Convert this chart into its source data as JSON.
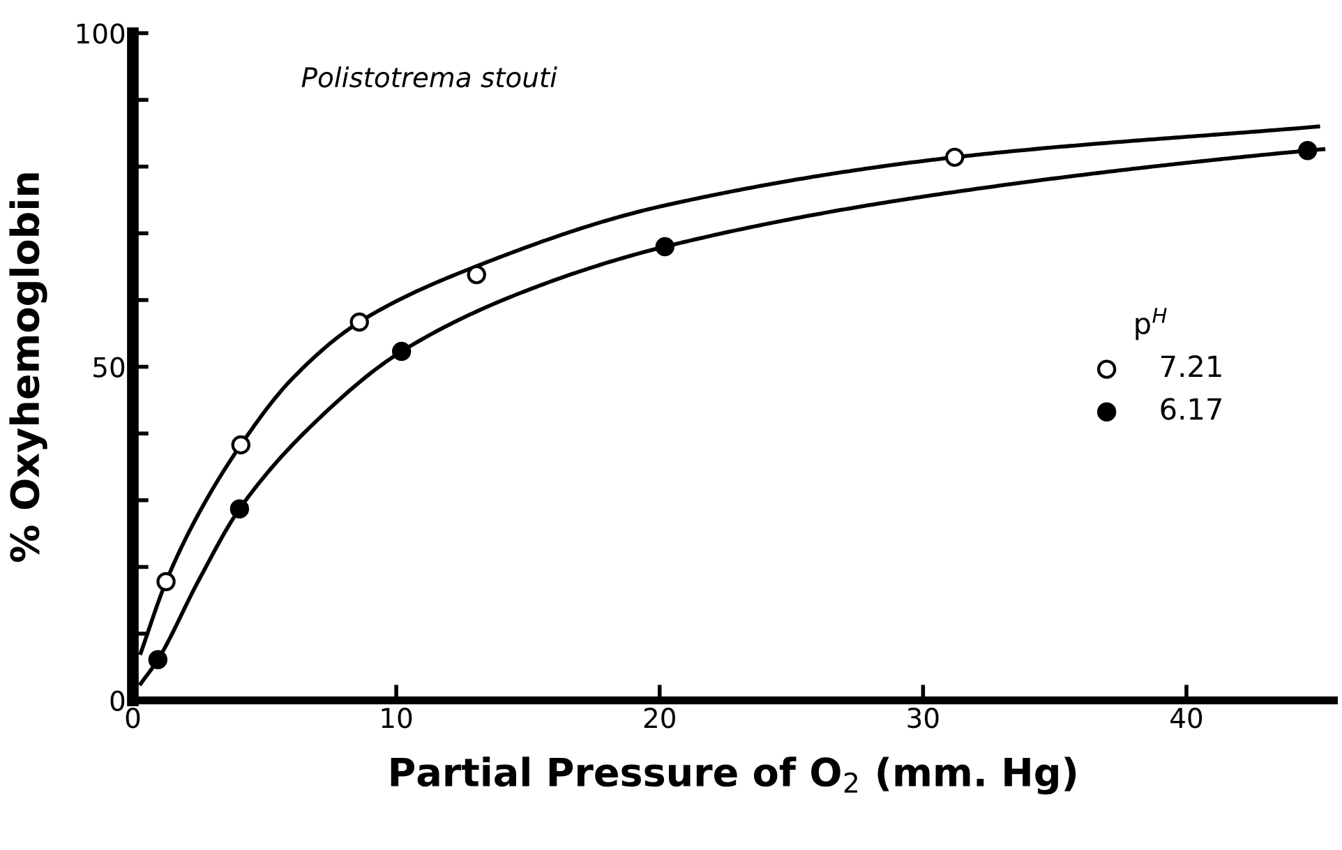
{
  "chart_data": {
    "type": "scatter",
    "title": "Polistotrema stouti",
    "xlabel": "Partial Pressure of O$_{2}$ (mm. Hg)",
    "ylabel": "% Oxyhemoglobin",
    "legend_title": "p$^{H}$",
    "legend": "right",
    "grid": false,
    "xlim": [
      0,
      45.6
    ],
    "ylim": [
      0,
      100
    ],
    "xticks": [
      0,
      10,
      20,
      30,
      40
    ],
    "yticks": [
      0,
      {
        "value": 10,
        "label": null
      },
      {
        "value": 20,
        "label": null
      },
      {
        "value": 30,
        "label": null
      },
      {
        "value": 40,
        "label": null
      },
      50,
      {
        "value": 60,
        "label": null
      },
      {
        "value": 70,
        "label": null
      },
      {
        "value": 80,
        "label": null
      },
      {
        "value": 90,
        "label": null
      },
      100
    ],
    "series": [
      {
        "type": "line",
        "color": "#000000",
        "x": [
          0.3,
          1.26,
          2.5,
          4.1,
          6,
          8.6,
          13,
          20,
          31.2,
          45
        ],
        "values": [
          7.1,
          17.8,
          28,
          38.3,
          48,
          56.7,
          65,
          74,
          81.4,
          86
        ]
      },
      {
        "type": "line",
        "color": "#000000",
        "x": [
          0.3,
          0.95,
          2.5,
          4.05,
          7,
          10.2,
          15,
          20.2,
          30,
          44.6,
          45.2
        ],
        "values": [
          2.5,
          6.1,
          18,
          28.7,
          42,
          52.3,
          61.5,
          68,
          75.5,
          82.4,
          82.6
        ]
      },
      {
        "marker": "circle",
        "name": "7.21",
        "color": "#ffffff",
        "x": [
          1.26,
          4.1,
          8.6,
          13.05,
          31.2
        ],
        "values": [
          17.8,
          38.3,
          56.7,
          63.8,
          81.4
        ]
      },
      {
        "marker": "circle",
        "name": "6.17",
        "color": "#000000",
        "x": [
          0.95,
          4.05,
          10.2,
          20.2,
          44.6
        ],
        "values": [
          6.1,
          28.7,
          52.3,
          68.0,
          82.4
        ]
      }
    ]
  }
}
